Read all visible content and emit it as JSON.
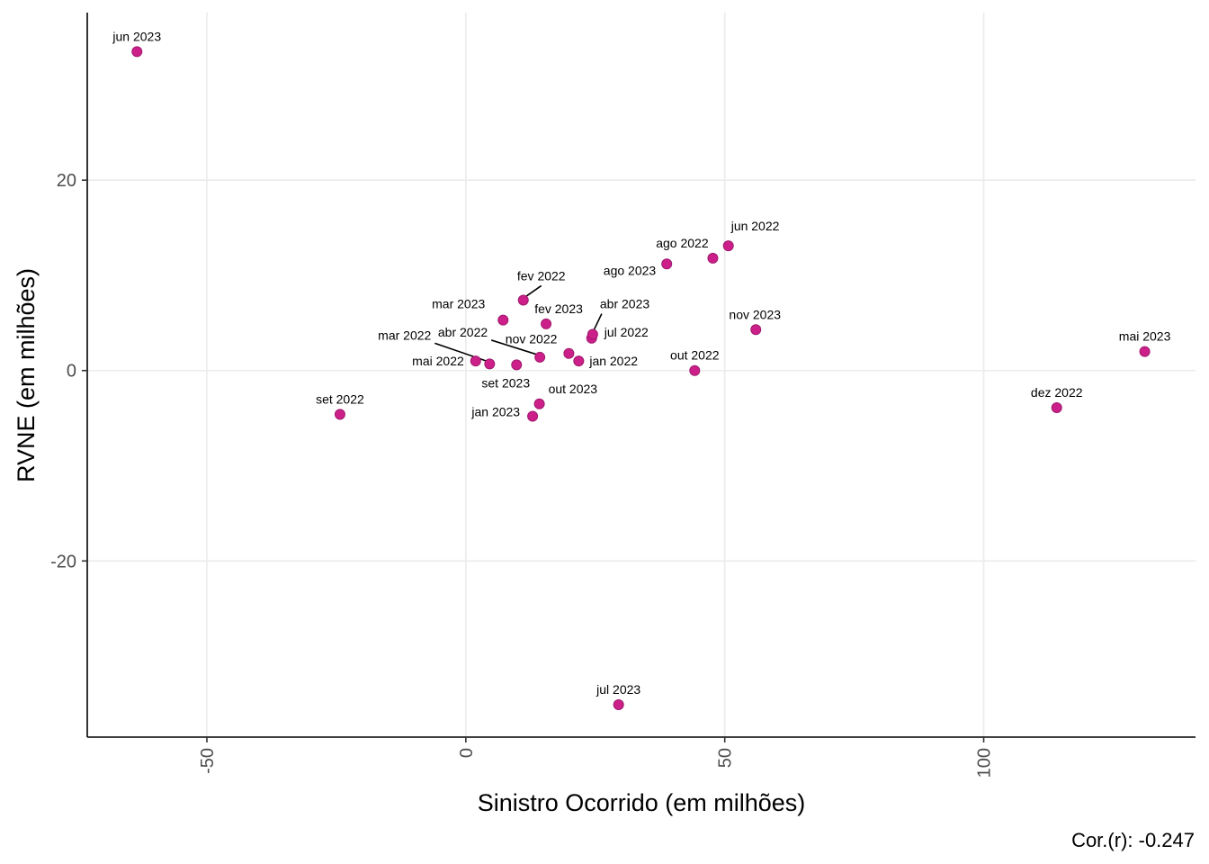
{
  "chart_data": {
    "type": "scatter",
    "xlabel": "Sinistro Ocorrido (em milhões)",
    "ylabel": "RVNE (em milhões)",
    "caption": "Cor.(r): -0.247",
    "xlim": [
      -73.1,
      140.9
    ],
    "ylim": [
      -38.5,
      37.6
    ],
    "x_ticks": [
      -50,
      0,
      50,
      100
    ],
    "y_ticks": [
      -20,
      0,
      20
    ],
    "grid": true,
    "point_color": "#cc1f8a",
    "points": [
      {
        "label": "jun 2023",
        "x": -63.5,
        "y": 33.5
      },
      {
        "label": "set 2022",
        "x": -24.3,
        "y": -4.6
      },
      {
        "label": "mai 2022",
        "x": 1.9,
        "y": 1.0
      },
      {
        "label": "mar 2022",
        "x": 4.6,
        "y": 0.7
      },
      {
        "label": "mar 2023",
        "x": 7.2,
        "y": 5.3
      },
      {
        "label": "set 2023",
        "x": 9.8,
        "y": 0.6
      },
      {
        "label": "fev 2022",
        "x": 11.1,
        "y": 7.4
      },
      {
        "label": "jan 2023",
        "x": 12.9,
        "y": -4.8
      },
      {
        "label": "out 2023",
        "x": 14.2,
        "y": -3.5
      },
      {
        "label": "abr 2022",
        "x": 14.3,
        "y": 1.4
      },
      {
        "label": "fev 2023",
        "x": 15.5,
        "y": 4.9
      },
      {
        "label": "nov 2022",
        "x": 19.9,
        "y": 1.8
      },
      {
        "label": "jan 2022",
        "x": 21.8,
        "y": 1.0
      },
      {
        "label": "jul 2022",
        "x": 24.3,
        "y": 3.4
      },
      {
        "label": "abr 2023",
        "x": 24.5,
        "y": 3.8
      },
      {
        "label": "jul 2023",
        "x": 29.5,
        "y": -35.1
      },
      {
        "label": "ago 2023",
        "x": 38.8,
        "y": 11.2
      },
      {
        "label": "out 2022",
        "x": 44.2,
        "y": 0.0
      },
      {
        "label": "ago 2022",
        "x": 47.7,
        "y": 11.8
      },
      {
        "label": "jun 2022",
        "x": 50.7,
        "y": 13.1
      },
      {
        "label": "nov 2023",
        "x": 56.0,
        "y": 4.3
      },
      {
        "label": "dez 2022",
        "x": 114.1,
        "y": -3.9
      },
      {
        "label": "mai 2023",
        "x": 131.1,
        "y": 2.0
      }
    ]
  }
}
